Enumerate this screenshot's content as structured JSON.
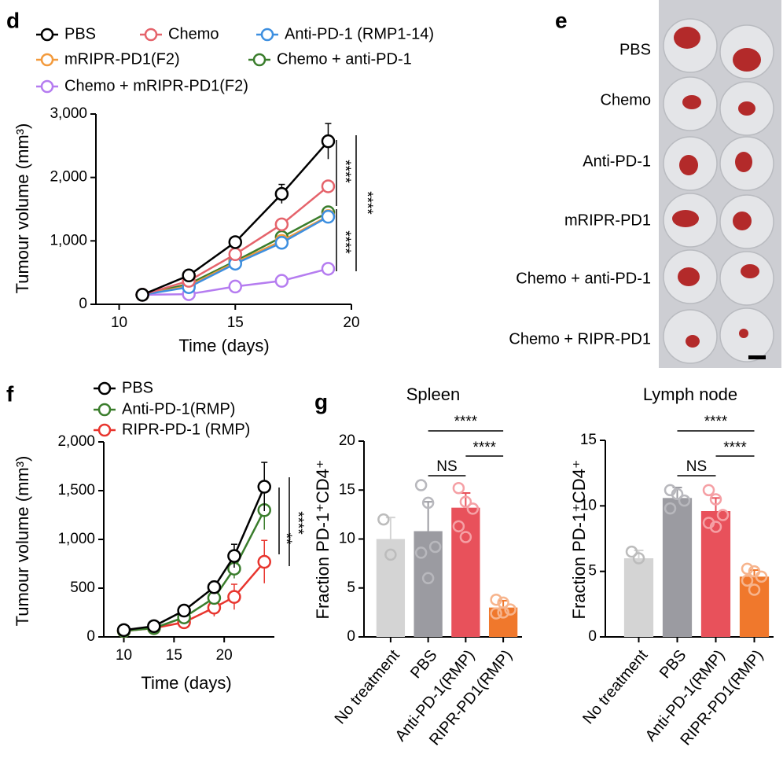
{
  "panel_labels": [
    "d",
    "e",
    "f",
    "g"
  ],
  "photo": {
    "labels": [
      "PBS",
      "Chemo",
      "Anti-PD-1",
      "mRIPR-PD1",
      "Chemo + anti-PD-1",
      "Chemo + RIPR-PD1"
    ]
  },
  "chart_data": [
    {
      "type": "line",
      "x_label": "Time (days)",
      "y_label": "Tumour volume (mm³)",
      "x": [
        11,
        13,
        15,
        17,
        19
      ],
      "xlim": [
        9,
        20
      ],
      "xticks": [
        10,
        15,
        20
      ],
      "ylim": [
        0,
        3000
      ],
      "yticks": [
        0,
        {
          "value": 1000,
          "label": "1,000"
        },
        {
          "value": 2000,
          "label": "2,000"
        },
        {
          "value": 3000,
          "label": "3,000"
        }
      ],
      "series": [
        {
          "name": "PBS",
          "color": "#000000",
          "values": [
            150,
            455,
            980,
            1740,
            2570
          ],
          "errors": [
            20,
            40,
            60,
            150,
            280
          ]
        },
        {
          "name": "Chemo",
          "color": "#e5636b",
          "values": [
            150,
            370,
            790,
            1260,
            1860
          ],
          "errors": [
            20,
            30,
            50,
            60,
            70
          ]
        },
        {
          "name": "Anti-PD-1 (RMP1-14)",
          "color": "#3d8fe0",
          "values": [
            150,
            270,
            640,
            970,
            1380
          ],
          "errors": [
            20,
            30,
            50,
            60,
            80
          ]
        },
        {
          "name": "mRIPR-PD1(F2)",
          "color": "#f39a3c",
          "values": [
            150,
            290,
            660,
            1000,
            1390
          ],
          "errors": [
            20,
            30,
            50,
            60,
            80
          ]
        },
        {
          "name": "Chemo + anti-PD-1",
          "color": "#3a7d2c",
          "values": [
            150,
            320,
            680,
            1060,
            1450
          ],
          "errors": [
            20,
            30,
            50,
            60,
            80
          ]
        },
        {
          "name": "Chemo + mRIPR-PD1(F2)",
          "color": "#b57cf0",
          "values": [
            150,
            160,
            280,
            370,
            560
          ],
          "errors": [
            20,
            20,
            30,
            30,
            40
          ]
        }
      ],
      "annotations": [
        "****",
        "****",
        "****"
      ]
    },
    {
      "type": "line",
      "x_label": "Time (days)",
      "y_label": "Tumour volume (mm³)",
      "x": [
        10,
        13,
        16,
        19,
        21,
        24
      ],
      "xlim": [
        8,
        25
      ],
      "xticks": [
        10,
        15,
        20
      ],
      "ylim": [
        0,
        2000
      ],
      "yticks": [
        0,
        500,
        {
          "value": 1000,
          "label": "1,000"
        },
        {
          "value": 1500,
          "label": "1,500"
        },
        {
          "value": 2000,
          "label": "2,000"
        }
      ],
      "series": [
        {
          "name": "PBS",
          "color": "#000000",
          "values": [
            70,
            110,
            270,
            510,
            830,
            1540
          ],
          "errors": [
            20,
            30,
            50,
            60,
            120,
            250
          ]
        },
        {
          "name": "Anti-PD-1(RMP)",
          "color": "#3a7d2c",
          "values": [
            60,
            90,
            200,
            400,
            700,
            1300
          ],
          "errors": [
            20,
            30,
            40,
            60,
            100,
            200
          ]
        },
        {
          "name": "RIPR-PD-1 (RMP)",
          "color": "#e8352e",
          "values": [
            60,
            90,
            150,
            300,
            410,
            770
          ],
          "errors": [
            20,
            30,
            40,
            90,
            130,
            220
          ]
        }
      ],
      "annotations": [
        "**",
        "****"
      ]
    },
    {
      "type": "bar",
      "title": "Spleen",
      "y_label": "Fraction PD-1⁺CD4⁺",
      "categories": [
        "No treatment",
        "PBS",
        "Anti-PD-1(RMP)",
        "RIPR-PD1(RMP)"
      ],
      "values": [
        10.0,
        10.8,
        13.2,
        3.0
      ],
      "errors": [
        2.2,
        3.0,
        1.5,
        0.7
      ],
      "colors": [
        "#d4d4d4",
        "#9b9ba1",
        "#e8515b",
        "#f0782c"
      ],
      "dot_colors": [
        "#bcbcbc",
        "#b8b8bd",
        "#f5a0a5",
        "#f7b48c"
      ],
      "points": [
        [
          12.0,
          8.4
        ],
        [
          15.5,
          13.7,
          9.2,
          8.6,
          6.0
        ],
        [
          15.2,
          13.8,
          13.1,
          11.3,
          10.2
        ],
        [
          3.8,
          3.5,
          2.8,
          2.4,
          2.5
        ]
      ],
      "ylim": [
        0,
        20
      ],
      "yticks": [
        0,
        5,
        10,
        15,
        20
      ],
      "annotations": [
        "NS",
        "****",
        "****"
      ]
    },
    {
      "type": "bar",
      "title": "Lymph node",
      "y_label": "Fraction PD-1⁺CD4⁺",
      "categories": [
        "No treatment",
        "PBS",
        "Anti-PD-1(RMP)",
        "RIPR-PD1(RMP)"
      ],
      "values": [
        6.0,
        10.6,
        9.6,
        4.6
      ],
      "errors": [
        0.6,
        0.8,
        1.0,
        0.5
      ],
      "colors": [
        "#d4d4d4",
        "#9b9ba1",
        "#e8515b",
        "#f0782c"
      ],
      "dot_colors": [
        "#bcbcbc",
        "#b8b8bd",
        "#f5a0a5",
        "#f7b48c"
      ],
      "points": [
        [
          6.5,
          6.0
        ],
        [
          11.2,
          10.9,
          10.4,
          9.8
        ],
        [
          11.2,
          10.5,
          9.3,
          8.7,
          8.4
        ],
        [
          5.2,
          5.0,
          4.6,
          4.3,
          3.6
        ]
      ],
      "ylim": [
        0,
        15
      ],
      "yticks": [
        0,
        5,
        10,
        15
      ],
      "annotations": [
        "NS",
        "****",
        "****"
      ]
    }
  ]
}
